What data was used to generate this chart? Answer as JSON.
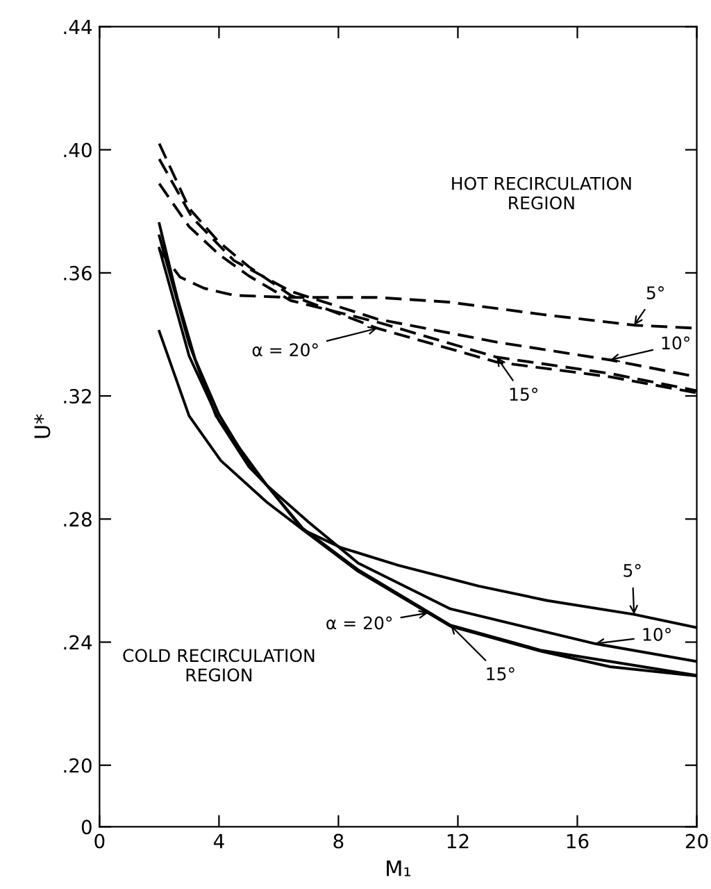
{
  "chart_data": {
    "type": "line",
    "xlabel": "M₁",
    "ylabel": "U*",
    "xlim": [
      0,
      20
    ],
    "xticks": [
      0,
      4,
      8,
      12,
      16,
      20
    ],
    "ylim": [
      0.18,
      0.44
    ],
    "yticks": [
      {
        "value": 0.18,
        "label": "0"
      },
      {
        "value": 0.2,
        "label": ".20"
      },
      {
        "value": 0.24,
        "label": ".24"
      },
      {
        "value": 0.28,
        "label": ".28"
      },
      {
        "value": 0.32,
        "label": ".32"
      },
      {
        "value": 0.36,
        "label": ".36"
      },
      {
        "value": 0.4,
        "label": ".40"
      },
      {
        "value": 0.44,
        "label": ".44"
      }
    ],
    "grid": false,
    "legend": false,
    "marker": "none",
    "series": [
      {
        "color": "#000000",
        "line_style": "dashed",
        "x": [
          2,
          2.7,
          3.5,
          4.5,
          6.4,
          9.3,
          11.7,
          14.8,
          17.9,
          20
        ],
        "values": [
          0.3675,
          0.3586,
          0.355,
          0.3527,
          0.352,
          0.352,
          0.3505,
          0.3465,
          0.343,
          0.342
        ]
      },
      {
        "color": "#000000",
        "line_style": "dashed",
        "x": [
          2,
          3.1,
          4.5,
          6.4,
          9.3,
          13.3,
          17.1,
          20
        ],
        "values": [
          0.397,
          0.378,
          0.364,
          0.354,
          0.345,
          0.3375,
          0.3317,
          0.3262
        ]
      },
      {
        "color": "#000000",
        "line_style": "dashed",
        "x": [
          2,
          3,
          4,
          5,
          6.4,
          9.3,
          13.3,
          17.1,
          20
        ],
        "values": [
          0.389,
          0.375,
          0.366,
          0.359,
          0.351,
          0.344,
          0.3326,
          0.3273,
          0.3217
        ]
      },
      {
        "color": "#000000",
        "line_style": "dashed",
        "x": [
          2,
          3,
          4,
          5,
          6.4,
          9.3,
          13.3,
          17.1,
          20
        ],
        "values": [
          0.402,
          0.381,
          0.37,
          0.362,
          0.3527,
          0.342,
          0.331,
          0.3262,
          0.321
        ]
      },
      {
        "color": "#000000",
        "line_style": "solid",
        "x": [
          2,
          3,
          4.06,
          5.6,
          6.8,
          8.06,
          10,
          12.7,
          15,
          17.9,
          20
        ],
        "values": [
          0.341,
          0.3135,
          0.299,
          0.2855,
          0.2766,
          0.2708,
          0.265,
          0.2582,
          0.2535,
          0.249,
          0.2447
        ]
      },
      {
        "color": "#000000",
        "line_style": "solid",
        "x": [
          2,
          3,
          3.9,
          5.6,
          7,
          8.66,
          11.75,
          16.6,
          20
        ],
        "values": [
          0.372,
          0.337,
          0.3135,
          0.291,
          0.279,
          0.2657,
          0.2508,
          0.2395,
          0.2337
        ]
      },
      {
        "color": "#000000",
        "line_style": "solid",
        "x": [
          2,
          2.6,
          3.2,
          4,
          5,
          6.8,
          8.66,
          11.75,
          14.8,
          20
        ],
        "values": [
          0.376,
          0.352,
          0.332,
          0.314,
          0.298,
          0.277,
          0.2635,
          0.2455,
          0.2373,
          0.2292
        ]
      },
      {
        "color": "#000000",
        "line_style": "solid",
        "x": [
          2,
          3,
          4,
          5,
          5.6,
          6.8,
          8.66,
          11.75,
          14.8,
          17.1,
          20
        ],
        "values": [
          0.368,
          0.333,
          0.312,
          0.297,
          0.291,
          0.2766,
          0.263,
          0.2452,
          0.237,
          0.232,
          0.229
        ]
      }
    ],
    "annotations": [
      "HOT RECIRCULATION\nREGION",
      "COLD RECIRCULATION\nREGION",
      {
        "text": "5°",
        "x": 17.9,
        "y": 0.343
      },
      {
        "text": "10°",
        "x": 17.1,
        "y": 0.3317
      },
      {
        "text": "15°",
        "x": 13.3,
        "y": 0.3326
      },
      {
        "text": "α = 20°",
        "x": 9.3,
        "y": 0.342
      },
      {
        "text": "5°",
        "x": 17.9,
        "y": 0.249
      },
      {
        "text": "10°",
        "x": 16.6,
        "y": 0.2395
      },
      {
        "text": "15°",
        "x": 11.75,
        "y": 0.2455
      },
      {
        "text": "α = 20°",
        "x": 11,
        "y": 0.2495
      }
    ]
  }
}
